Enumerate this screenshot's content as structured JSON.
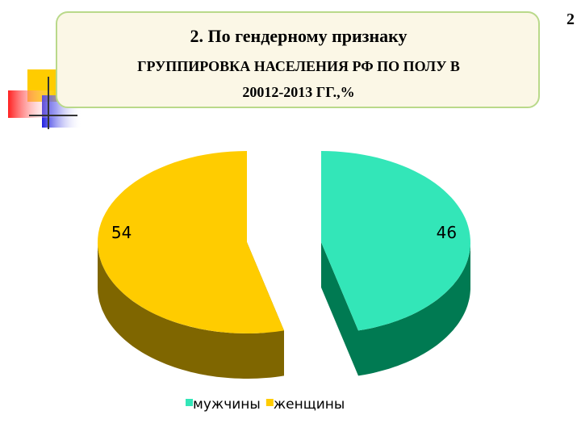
{
  "page_number": "2",
  "chart_data": {
    "type": "pie3d",
    "title": "2. По гендерному признаку",
    "subtitle": [
      "ГРУППИРОВКА НАСЕЛЕНИЯ РФ ПО ПОЛУ В",
      "20012-2013 ГГ.,%"
    ],
    "categories": [
      "мужчины",
      "женщины"
    ],
    "values": [
      46,
      54
    ],
    "colors": [
      "#33e6b8",
      "#ffcc00"
    ],
    "side_colors": [
      "#007a52",
      "#7f6600"
    ],
    "legend": "bottom"
  }
}
